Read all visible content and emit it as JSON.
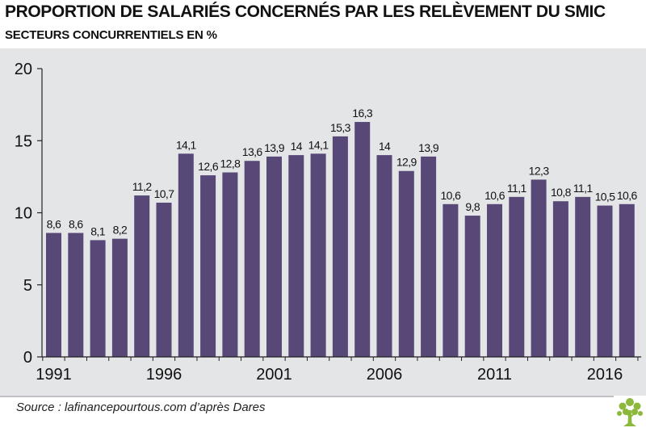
{
  "title": "PROPORTION DE SALARIÉS CONCERNÉS PAR LES RELÈVEMENT DU SMIC",
  "subtitle": "SECTEURS CONCURRENTIELS EN %",
  "source": "Source : lafinancepourtous.com d’après Dares",
  "colors": {
    "bar": "#574878",
    "background": "#e4e5e7",
    "logo": "#8cb83c"
  },
  "logo_icon": "tree-icon",
  "chart_data": {
    "type": "bar",
    "title": "PROPORTION DE SALARIÉS CONCERNÉS PAR LES RELÈVEMENT DU SMIC",
    "subtitle": "SECTEURS CONCURRENTIELS EN %",
    "categories": [
      1991,
      1992,
      1993,
      1994,
      1995,
      1996,
      1997,
      1998,
      1999,
      2000,
      2001,
      2002,
      2003,
      2004,
      2005,
      2006,
      2007,
      2008,
      2009,
      2010,
      2011,
      2012,
      2013,
      2014,
      2015,
      2016,
      2017
    ],
    "values": [
      8.6,
      8.6,
      8.1,
      8.2,
      11.2,
      10.7,
      14.1,
      12.6,
      12.8,
      13.6,
      13.9,
      14,
      14.1,
      15.3,
      16.3,
      14,
      12.9,
      13.9,
      10.6,
      9.8,
      10.6,
      11.1,
      12.3,
      10.8,
      11.1,
      10.5,
      10.6
    ],
    "data_labels": [
      "8,6",
      "8,6",
      "8,1",
      "8,2",
      "11,2",
      "10,7",
      "14,1",
      "12,6",
      "12,8",
      "13,6",
      "13,9",
      "14",
      "14,1",
      "15,3",
      "16,3",
      "14",
      "12,9",
      "13,9",
      "10,6",
      "9,8",
      "10,6",
      "11,1",
      "12,3",
      "10,8",
      "11,1",
      "10,5",
      "10,6"
    ],
    "x_tick_labels": [
      "1991",
      "1996",
      "2001",
      "2006",
      "2011",
      "2016"
    ],
    "x_tick_years": [
      1991,
      1996,
      2001,
      2006,
      2011,
      2016
    ],
    "y_ticks": [
      0,
      5,
      10,
      15,
      20
    ],
    "ylim": [
      0,
      20
    ],
    "xlabel": "",
    "ylabel": "",
    "grid": false
  }
}
